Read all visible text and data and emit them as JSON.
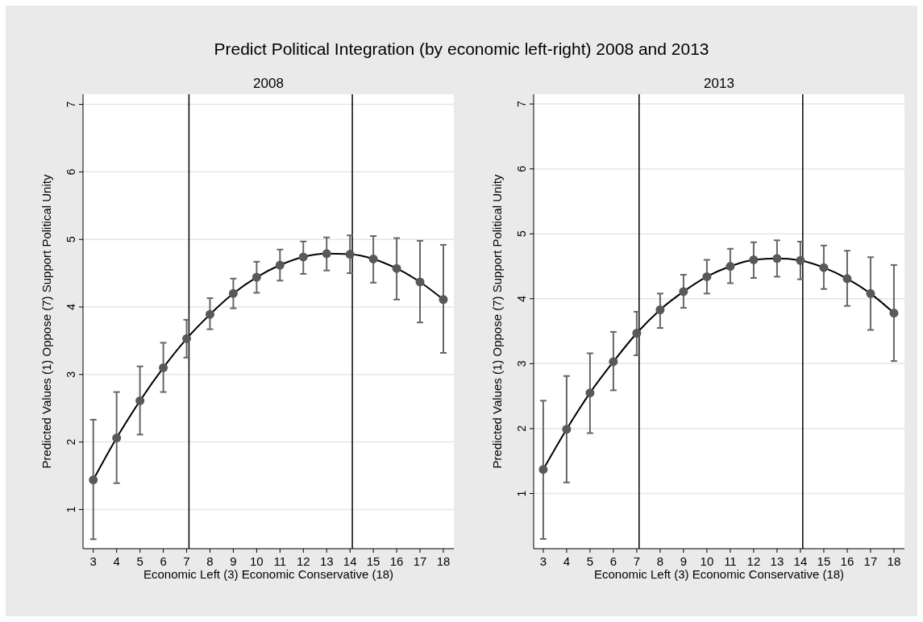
{
  "chart_data": [
    {
      "type": "line",
      "title": "2008",
      "annotations": [
        "Predict Political Integration (by economic left-right) 2008 and 2013"
      ],
      "xlabel": "Economic Left (3) Economic Conservative (18)",
      "ylabel": "Predicted Values  (1) Oppose (7) Support Political Unity",
      "x": [
        3,
        4,
        5,
        6,
        7,
        8,
        9,
        10,
        11,
        12,
        13,
        14,
        15,
        16,
        17,
        18
      ],
      "series": [
        {
          "color": "#000000",
          "values": [
            1.44,
            2.06,
            2.61,
            3.1,
            3.53,
            3.89,
            4.2,
            4.44,
            4.62,
            4.74,
            4.79,
            4.78,
            4.71,
            4.57,
            4.37,
            4.11
          ],
          "errors": [
            [
              0.56,
              2.33
            ],
            [
              1.39,
              2.74
            ],
            [
              2.11,
              3.12
            ],
            [
              2.74,
              3.47
            ],
            [
              3.25,
              3.81
            ],
            [
              3.67,
              4.13
            ],
            [
              3.98,
              4.42
            ],
            [
              4.21,
              4.67
            ],
            [
              4.39,
              4.85
            ],
            [
              4.49,
              4.97
            ],
            [
              4.54,
              5.03
            ],
            [
              4.5,
              5.06
            ],
            [
              4.36,
              5.05
            ],
            [
              4.11,
              5.02
            ],
            [
              3.77,
              4.98
            ],
            [
              3.32,
              4.92
            ]
          ]
        }
      ],
      "marker": "circle",
      "xlim": [
        2.56,
        18.45
      ],
      "ylim": [
        0.42,
        7.15
      ],
      "xticks": [
        3,
        4,
        5,
        6,
        7,
        8,
        9,
        10,
        11,
        12,
        13,
        14,
        15,
        16,
        17,
        18
      ],
      "yticks": [
        1,
        2,
        3,
        4,
        5,
        6,
        7
      ],
      "grid": "y",
      "ref_lines": [
        {
          "axis": "x",
          "value": 7.1,
          "color": "#000000"
        },
        {
          "axis": "x",
          "value": 14.1,
          "color": "#000000"
        }
      ]
    },
    {
      "type": "line",
      "title": "2013",
      "xlabel": "Economic Left (3) Economic Conservative (18)",
      "ylabel": "Predicted Values  (1) Oppose (7) Support Political Unity",
      "x": [
        3,
        4,
        5,
        6,
        7,
        8,
        9,
        10,
        11,
        12,
        13,
        14,
        15,
        16,
        17,
        18
      ],
      "series": [
        {
          "color": "#000000",
          "values": [
            1.37,
            1.99,
            2.55,
            3.03,
            3.47,
            3.83,
            4.11,
            4.34,
            4.5,
            4.6,
            4.62,
            4.59,
            4.48,
            4.31,
            4.08,
            3.78
          ],
          "errors": [
            [
              0.3,
              2.43
            ],
            [
              1.17,
              2.81
            ],
            [
              1.93,
              3.16
            ],
            [
              2.59,
              3.49
            ],
            [
              3.13,
              3.8
            ],
            [
              3.55,
              4.08
            ],
            [
              3.86,
              4.37
            ],
            [
              4.08,
              4.6
            ],
            [
              4.24,
              4.77
            ],
            [
              4.32,
              4.87
            ],
            [
              4.34,
              4.9
            ],
            [
              4.3,
              4.88
            ],
            [
              4.15,
              4.82
            ],
            [
              3.89,
              4.74
            ],
            [
              3.52,
              4.64
            ],
            [
              3.04,
              4.52
            ]
          ]
        }
      ],
      "marker": "circle",
      "xlim": [
        2.59,
        18.45
      ],
      "ylim": [
        0.15,
        7.15
      ],
      "xticks": [
        3,
        4,
        5,
        6,
        7,
        8,
        9,
        10,
        11,
        12,
        13,
        14,
        15,
        16,
        17,
        18
      ],
      "yticks": [
        1,
        2,
        3,
        4,
        5,
        6,
        7
      ],
      "grid": "y",
      "ref_lines": [
        {
          "axis": "x",
          "value": 7.1,
          "color": "#000000"
        },
        {
          "axis": "x",
          "value": 14.1,
          "color": "#000000"
        }
      ]
    }
  ]
}
